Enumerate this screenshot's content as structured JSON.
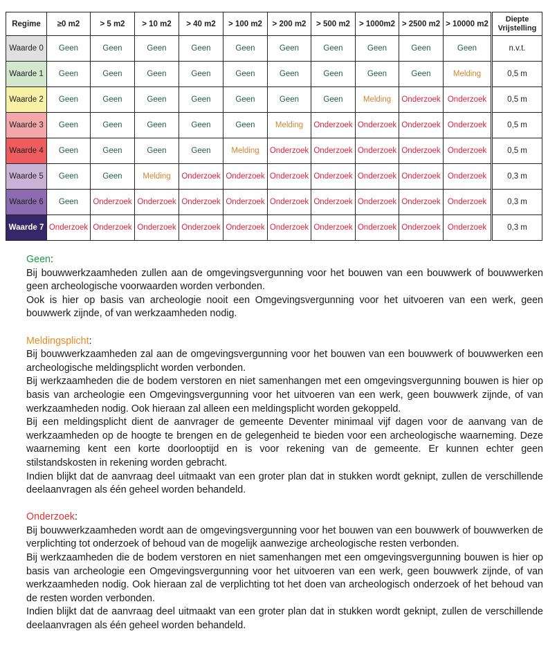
{
  "table": {
    "headers": [
      "Regime",
      "≥0 m2",
      "> 5 m2",
      "> 10 m2",
      "> 40 m2",
      "> 100 m2",
      "> 200 m2",
      "> 500 m2",
      "> 1000m2",
      "> 2500 m2",
      "> 10000 m2",
      "Diepte Vrijstelling"
    ],
    "rows": [
      {
        "regime": "Waarde 0",
        "color": "#e0e0e0",
        "text_color": "#222222",
        "cells": [
          "Geen",
          "Geen",
          "Geen",
          "Geen",
          "Geen",
          "Geen",
          "Geen",
          "Geen",
          "Geen",
          "Geen"
        ],
        "depth": "n.v.t."
      },
      {
        "regime": "Waarde 1",
        "color": "#d3e7cd",
        "text_color": "#222222",
        "cells": [
          "Geen",
          "Geen",
          "Geen",
          "Geen",
          "Geen",
          "Geen",
          "Geen",
          "Geen",
          "Geen",
          "Melding"
        ],
        "depth": "0,5 m"
      },
      {
        "regime": "Waarde 2",
        "color": "#f7f1a6",
        "text_color": "#222222",
        "cells": [
          "Geen",
          "Geen",
          "Geen",
          "Geen",
          "Geen",
          "Geen",
          "Geen",
          "Melding",
          "Onderzoek",
          "Onderzoek"
        ],
        "depth": "0,5 m"
      },
      {
        "regime": "Waarde 3",
        "color": "#f4a7ab",
        "text_color": "#222222",
        "cells": [
          "Geen",
          "Geen",
          "Geen",
          "Geen",
          "Geen",
          "Melding",
          "Onderzoek",
          "Onderzoek",
          "Onderzoek",
          "Onderzoek"
        ],
        "depth": "0,5 m"
      },
      {
        "regime": "Waarde 4",
        "color": "#ee5c5e",
        "text_color": "#222222",
        "cells": [
          "Geen",
          "Geen",
          "Geen",
          "Geen",
          "Melding",
          "Onderzoek",
          "Onderzoek",
          "Onderzoek",
          "Onderzoek",
          "Onderzoek"
        ],
        "depth": "0,5 m"
      },
      {
        "regime": "Waarde 5",
        "color": "#c8b2d6",
        "text_color": "#222222",
        "cells": [
          "Geen",
          "Geen",
          "Melding",
          "Onderzoek",
          "Onderzoek",
          "Onderzoek",
          "Onderzoek",
          "Onderzoek",
          "Onderzoek",
          "Onderzoek"
        ],
        "depth": "0,3 m"
      },
      {
        "regime": "Waarde 6",
        "color": "#8c6bb0",
        "text_color": "#222222",
        "cells": [
          "Geen",
          "Onderzoek",
          "Onderzoek",
          "Onderzoek",
          "Onderzoek",
          "Onderzoek",
          "Onderzoek",
          "Onderzoek",
          "Onderzoek",
          "Onderzoek"
        ],
        "depth": "0,3 m"
      },
      {
        "regime": "Waarde 7",
        "color": "#362868",
        "text_color": "#ffffff",
        "cells": [
          "Onderzoek",
          "Onderzoek",
          "Onderzoek",
          "Onderzoek",
          "Onderzoek",
          "Onderzoek",
          "Onderzoek",
          "Onderzoek",
          "Onderzoek",
          "Onderzoek"
        ],
        "depth": "0,3 m"
      }
    ]
  },
  "sections": {
    "geen": {
      "title": "Geen",
      "colon": ":",
      "color": "#1a9a4a",
      "paragraphs": [
        "Bij bouwwerkzaamheden zullen aan de omgevingsvergunning voor het bouwen van een bouwwerk of bouwwerken geen archeologische voorwaarden worden verbonden.",
        "Ook is hier op basis van archeologie nooit een Omgevingsvergunning voor het uitvoeren van een werk, geen bouwwerk zijnde, of van werkzaamheden nodig."
      ]
    },
    "melding": {
      "title": "Meldingsplicht",
      "colon": ":",
      "color": "#ec8a22",
      "paragraphs": [
        "Bij bouwwerkzaamheden zal aan de omgevingsvergunning voor het bouwen van een bouwwerk of bouwwerken een archeologische meldingsplicht worden verbonden.",
        "Bij werkzaamheden die de bodem verstoren en niet samenhangen met een omgevingsvergunning bouwen is hier op basis van archeologie een Omgevingsvergunning voor het uitvoeren van een werk, geen bouwwerk zijnde, of van werkzaamheden nodig. Ook hieraan zal alleen een meldingsplicht worden gekoppeld.",
        "Bij een meldingsplicht dient de aanvrager de gemeente Deventer minimaal vijf dagen voor de aanvang van de werkzaamheden op de hoogte te brengen en de gelegenheid te bieden voor een archeologische waarneming. Deze waarneming kent een korte doorlooptijd en is voor rekening van de gemeente. Er kunnen echter geen stilstandskosten in rekening worden gebracht.",
        "Indien blijkt dat de aanvraag deel uitmaakt van een groter plan dat in stukken wordt geknipt, zullen de verschillende deelaanvragen als één geheel worden behandeld."
      ]
    },
    "onderzoek": {
      "title": "Onderzoek",
      "colon": ":",
      "color": "#e43232",
      "paragraphs": [
        "Bij bouwwerkzaamheden wordt aan de omgevingsvergunning voor het bouwen van een bouwwerk of bouwwerken de verplichting tot onderzoek of behoud van de mogelijk aanwezige archeologische resten verbonden.",
        "Bij werkzaamheden die de bodem verstoren en niet samenhangen met een omgevingsvergunning bouwen is hier op basis van archeologie een Omgevingsvergunning voor het uitvoeren van een werk, geen bouwwerk zijnde, of van werkzaamheden nodig. Ook hieraan zal de verplichting tot het doen van archeologisch onderzoek of het behoud van de resten worden verbonden.",
        "Indien blijkt dat de aanvraag deel uitmaakt van een groter plan dat in stukken wordt geknipt, zullen de verschillende deelaanvragen als één geheel worden behandeld."
      ]
    }
  }
}
